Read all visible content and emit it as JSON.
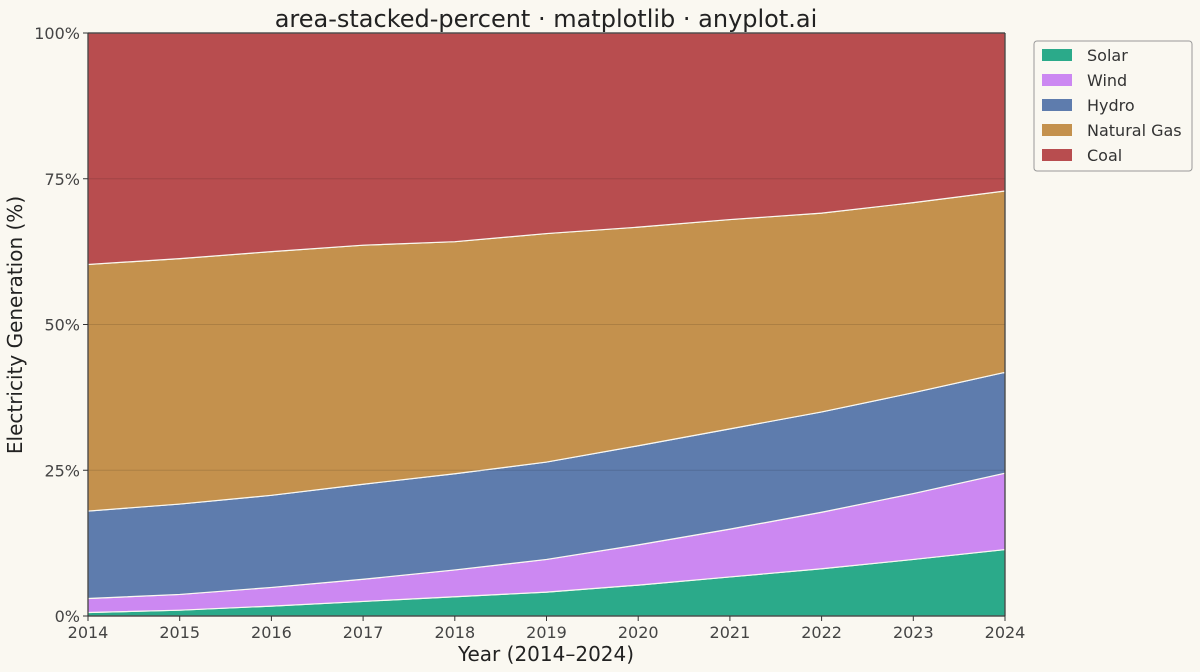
{
  "chart_data": {
    "type": "area",
    "stacked": "percent",
    "title": "area-stacked-percent · matplotlib · anyplot.ai",
    "xlabel": "Year (2014–2024)",
    "ylabel": "Electricity Generation (%)",
    "x": [
      2014,
      2015,
      2016,
      2017,
      2018,
      2019,
      2020,
      2021,
      2022,
      2023,
      2024
    ],
    "xticks": [
      "2014",
      "2015",
      "2016",
      "2017",
      "2018",
      "2019",
      "2020",
      "2021",
      "2022",
      "2023",
      "2024"
    ],
    "ylim": [
      0,
      100
    ],
    "yticks": [
      0,
      25,
      50,
      75,
      100
    ],
    "ytick_labels": [
      "0%",
      "25%",
      "50%",
      "75%",
      "100%"
    ],
    "grid": "y",
    "legend_position": "outside-top-right",
    "series": [
      {
        "name": "Solar",
        "color": "#2BAA8A",
        "values": [
          0.6,
          1.0,
          1.7,
          2.5,
          3.3,
          4.1,
          5.3,
          6.7,
          8.1,
          9.7,
          11.4
        ]
      },
      {
        "name": "Wind",
        "color": "#CC88F2",
        "values": [
          2.4,
          2.7,
          3.2,
          3.8,
          4.6,
          5.6,
          6.9,
          8.2,
          9.7,
          11.3,
          13.1
        ]
      },
      {
        "name": "Hydro",
        "color": "#5E7CAD",
        "values": [
          15.0,
          15.5,
          15.8,
          16.3,
          16.5,
          16.7,
          17.0,
          17.2,
          17.2,
          17.3,
          17.3
        ]
      },
      {
        "name": "Natural Gas",
        "color": "#C4914D",
        "values": [
          42.3,
          42.1,
          41.8,
          41.0,
          39.8,
          39.2,
          37.5,
          35.9,
          34.1,
          32.6,
          31.1
        ]
      },
      {
        "name": "Coal",
        "color": "#B84D4F",
        "values": [
          39.7,
          38.7,
          37.5,
          36.4,
          35.8,
          34.4,
          33.3,
          32.0,
          30.9,
          29.1,
          27.1
        ]
      }
    ]
  }
}
